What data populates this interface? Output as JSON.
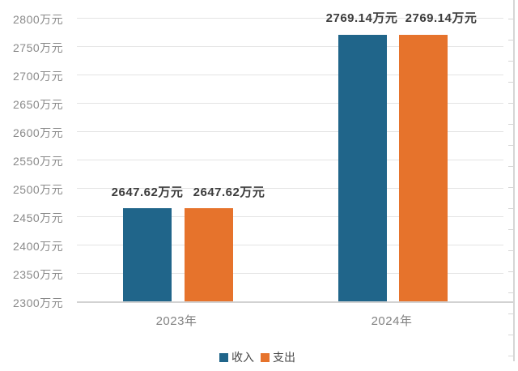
{
  "chart_data": {
    "type": "bar",
    "title": "",
    "categories": [
      "2023年",
      "2024年"
    ],
    "series": [
      {
        "name": "收入",
        "color": "#20658a",
        "values": [
          2647.62,
          2769.14
        ]
      },
      {
        "name": "支出",
        "color": "#e6732c",
        "values": [
          2647.62,
          2769.14
        ]
      }
    ],
    "data_labels": [
      "2647.62万元",
      "2647.62万元",
      "2769.14万元",
      "2769.14万元"
    ],
    "y_ticks": [
      "2800万元",
      "2750万元",
      "2700万元",
      "2650万元",
      "2600万元",
      "2550万元",
      "2500万元",
      "2450万元",
      "2400万元",
      "2350万元",
      "2300万元"
    ],
    "ylim": [
      2300,
      2800
    ],
    "xlabel": "",
    "ylabel": "万元",
    "grid": true,
    "legend_position": "bottom"
  },
  "legend": {
    "items": [
      {
        "label": "收入",
        "color": "#20658a"
      },
      {
        "label": "支出",
        "color": "#e6732c"
      }
    ]
  },
  "colors": {
    "income": "#20658a",
    "expense": "#e6732c",
    "gridline": "#e4e4e4",
    "axis_text": "#8a8a8a",
    "data_label_text": "#3c3c3c",
    "background": "#ffffff"
  }
}
